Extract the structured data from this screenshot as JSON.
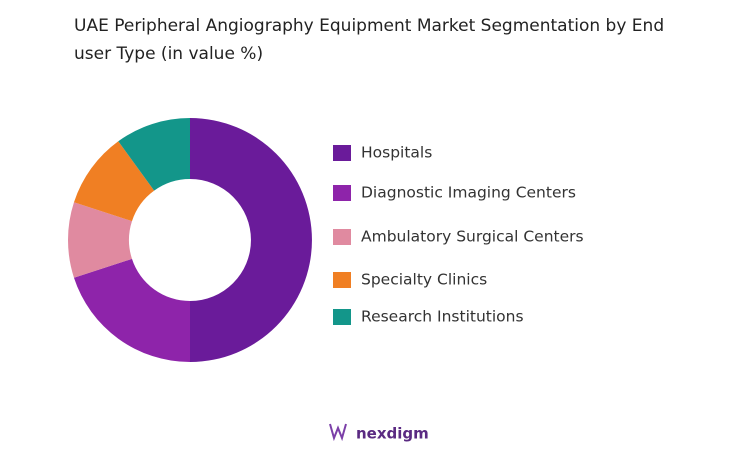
{
  "chart_data": {
    "type": "pie",
    "title": "UAE Peripheral Angiography Equipment  Market Segmentation by End user Type (in value %)",
    "categories": [
      "Hospitals",
      "Diagnostic Imaging Centers",
      "Ambulatory Surgical Centers",
      "Specialty Clinics",
      "Research Institutions"
    ],
    "values": [
      50,
      20,
      10,
      10,
      10
    ],
    "colors": [
      "#6a1b9a",
      "#8e24aa",
      "#e08aa0",
      "#f07f23",
      "#13968a"
    ],
    "donut": true
  },
  "logo": "nexdigm"
}
